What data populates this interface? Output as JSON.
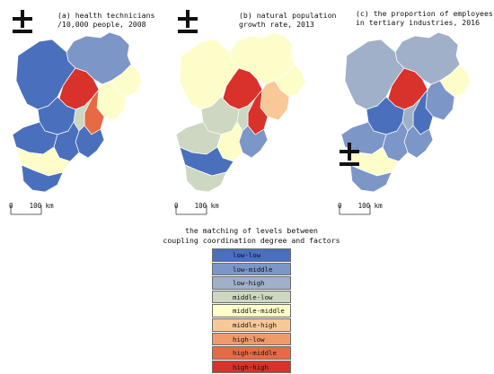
{
  "colors": {
    "low-low": "#4a70bd",
    "low-middle": "#7d96c8",
    "low-high": "#9fb0c8",
    "middle-low": "#cdd7c1",
    "middle-middle": "#fdfdc9",
    "middle-high": "#f8c897",
    "high-low": "#f09a6a",
    "high-middle": "#e76a45",
    "high-high": "#d8322a"
  },
  "north_icon": "north-arrow-icon",
  "panels": [
    {
      "title": "(a) health technicians\n/10,000 people, 2008",
      "scale_label": "0    100 km",
      "regions": {
        "chengde": "low-middle",
        "zhangjiakou": "low-low",
        "beijing": "high-high",
        "tianjin": "high-middle",
        "tangshan": "middle-middle",
        "qinhuangdao": "middle-middle",
        "langfang": "middle-low",
        "baoding": "low-low",
        "cangzhou": "low-low",
        "shijiazhuang": "low-low",
        "hengshui": "low-low",
        "xingtai": "middle-middle",
        "handan": "low-low"
      }
    },
    {
      "title": "(b) natural population\ngrowth rate, 2013",
      "scale_label": "0    100 km",
      "regions": {
        "chengde": "middle-middle",
        "zhangjiakou": "middle-middle",
        "beijing": "high-high",
        "tianjin": "high-high",
        "tangshan": "middle-high",
        "qinhuangdao": "middle-middle",
        "langfang": "middle-low",
        "baoding": "middle-low",
        "cangzhou": "low-middle",
        "shijiazhuang": "middle-low",
        "hengshui": "middle-middle",
        "xingtai": "low-low",
        "handan": "middle-low"
      }
    },
    {
      "title": "(c) the proportion of employees\nin tertiary industries, 2016",
      "scale_label": "0    100 km",
      "regions": {
        "chengde": "low-high",
        "zhangjiakou": "low-high",
        "beijing": "high-high",
        "tianjin": "low-low",
        "tangshan": "low-middle",
        "qinhuangdao": "middle-middle",
        "langfang": "low-high",
        "baoding": "low-low",
        "cangzhou": "low-middle",
        "shijiazhuang": "low-middle",
        "hengshui": "low-middle",
        "xingtai": "middle-middle",
        "handan": "low-middle"
      }
    }
  ],
  "legend": {
    "title": "the matching of levels between\ncoupling coordination degree and factors",
    "items": [
      {
        "key": "low-low",
        "label": "low-low"
      },
      {
        "key": "low-middle",
        "label": "low-middle"
      },
      {
        "key": "low-high",
        "label": "low-high"
      },
      {
        "key": "middle-low",
        "label": "middle-low"
      },
      {
        "key": "middle-middle",
        "label": "middle-middle"
      },
      {
        "key": "middle-high",
        "label": "middle-high"
      },
      {
        "key": "high-low",
        "label": "high-low"
      },
      {
        "key": "high-middle",
        "label": "high-middle"
      },
      {
        "key": "high-high",
        "label": "high-high"
      }
    ]
  }
}
